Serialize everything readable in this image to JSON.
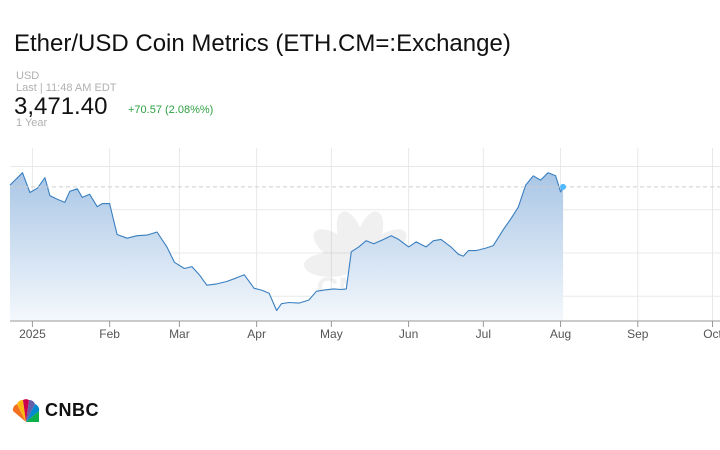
{
  "header": {
    "title": "Ether/USD Coin Metrics (ETH.CM=:Exchange)",
    "currency": "USD",
    "last_time": "Last | 11:48 AM EDT",
    "price": "3,471.40",
    "change": "+70.57 (2.08%%)",
    "range": "1 Year"
  },
  "brand": {
    "name": "CNBC",
    "watermark": "CNBC"
  },
  "colors": {
    "line": "#3a7fc0",
    "area_top": "#a9c6e6",
    "area_bottom": "#f4f8fc",
    "change_up": "#2fa043",
    "marker": "#4fb8ff"
  },
  "chart_data": {
    "type": "area",
    "title": "",
    "xlabel": "",
    "ylabel": "",
    "x_ticks": [
      "2025",
      "Feb",
      "Mar",
      "Apr",
      "May",
      "Jun",
      "Jul",
      "Aug",
      "Sep",
      "Oct"
    ],
    "x_tick_dates": [
      "2025-01-01",
      "2025-02-01",
      "2025-03-01",
      "2025-04-01",
      "2025-05-01",
      "2025-06-01",
      "2025-07-01",
      "2025-08-01",
      "2025-09-01",
      "2025-10-01"
    ],
    "xlim": [
      "2024-12-23",
      "2025-10-04"
    ],
    "ylim": [
      1300,
      4100
    ],
    "grid": true,
    "reference_line": 3471.4,
    "series": [
      {
        "points": [
          [
            "2024-12-23",
            3500
          ],
          [
            "2024-12-26",
            3620
          ],
          [
            "2024-12-28",
            3700
          ],
          [
            "2024-12-31",
            3380
          ],
          [
            "2025-01-03",
            3450
          ],
          [
            "2025-01-06",
            3620
          ],
          [
            "2025-01-08",
            3330
          ],
          [
            "2025-01-11",
            3270
          ],
          [
            "2025-01-14",
            3220
          ],
          [
            "2025-01-16",
            3400
          ],
          [
            "2025-01-19",
            3440
          ],
          [
            "2025-01-21",
            3300
          ],
          [
            "2025-01-24",
            3350
          ],
          [
            "2025-01-27",
            3150
          ],
          [
            "2025-01-29",
            3200
          ],
          [
            "2025-02-01",
            3200
          ],
          [
            "2025-02-04",
            2700
          ],
          [
            "2025-02-08",
            2640
          ],
          [
            "2025-02-12",
            2680
          ],
          [
            "2025-02-16",
            2690
          ],
          [
            "2025-02-20",
            2740
          ],
          [
            "2025-02-24",
            2500
          ],
          [
            "2025-02-27",
            2250
          ],
          [
            "2025-03-03",
            2150
          ],
          [
            "2025-03-06",
            2180
          ],
          [
            "2025-03-09",
            2050
          ],
          [
            "2025-03-12",
            1880
          ],
          [
            "2025-03-16",
            1900
          ],
          [
            "2025-03-20",
            1940
          ],
          [
            "2025-03-24",
            2000
          ],
          [
            "2025-03-27",
            2050
          ],
          [
            "2025-03-31",
            1830
          ],
          [
            "2025-04-03",
            1800
          ],
          [
            "2025-04-06",
            1750
          ],
          [
            "2025-04-09",
            1470
          ],
          [
            "2025-04-11",
            1580
          ],
          [
            "2025-04-14",
            1600
          ],
          [
            "2025-04-18",
            1590
          ],
          [
            "2025-04-22",
            1640
          ],
          [
            "2025-04-25",
            1780
          ],
          [
            "2025-04-28",
            1800
          ],
          [
            "2025-05-02",
            1820
          ],
          [
            "2025-05-05",
            1810
          ],
          [
            "2025-05-07",
            1820
          ],
          [
            "2025-05-09",
            2420
          ],
          [
            "2025-05-12",
            2500
          ],
          [
            "2025-05-15",
            2600
          ],
          [
            "2025-05-18",
            2550
          ],
          [
            "2025-05-22",
            2620
          ],
          [
            "2025-05-25",
            2680
          ],
          [
            "2025-05-28",
            2620
          ],
          [
            "2025-06-01",
            2500
          ],
          [
            "2025-06-04",
            2580
          ],
          [
            "2025-06-08",
            2500
          ],
          [
            "2025-06-11",
            2600
          ],
          [
            "2025-06-14",
            2620
          ],
          [
            "2025-06-18",
            2500
          ],
          [
            "2025-06-21",
            2380
          ],
          [
            "2025-06-23",
            2350
          ],
          [
            "2025-06-25",
            2440
          ],
          [
            "2025-06-28",
            2440
          ],
          [
            "2025-07-02",
            2480
          ],
          [
            "2025-07-05",
            2520
          ],
          [
            "2025-07-09",
            2780
          ],
          [
            "2025-07-12",
            2950
          ],
          [
            "2025-07-15",
            3140
          ],
          [
            "2025-07-18",
            3500
          ],
          [
            "2025-07-21",
            3650
          ],
          [
            "2025-07-24",
            3580
          ],
          [
            "2025-07-27",
            3700
          ],
          [
            "2025-07-30",
            3650
          ],
          [
            "2025-08-01",
            3390
          ],
          [
            "2025-08-02",
            3471.4
          ]
        ]
      }
    ]
  }
}
